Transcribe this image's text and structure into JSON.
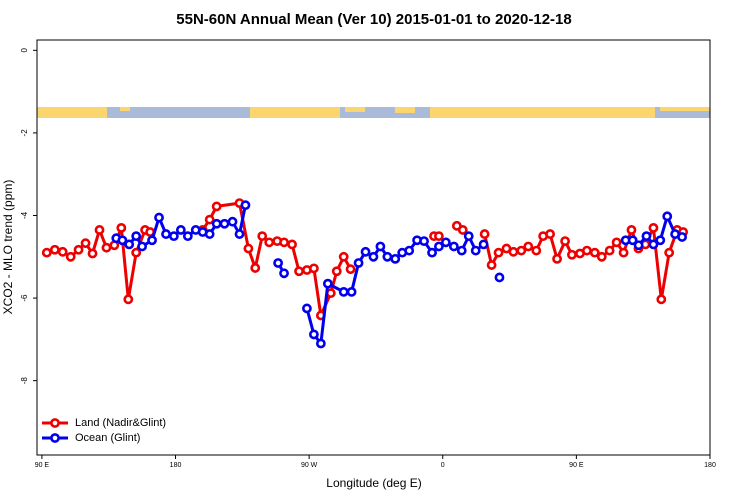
{
  "chart_data": {
    "type": "line",
    "title": "55N-60N Annual Mean (Ver 10)   2015-01-01 to 2020-12-18",
    "x_label": "Longitude (deg E)",
    "y_label": "XCO2 - MLO trend (ppm)",
    "xlim": [
      86.7,
      540
    ],
    "xticks": [
      {
        "value": 90,
        "label": "90 E"
      },
      {
        "value": 180,
        "label": "180"
      },
      {
        "value": 270,
        "label": "90 W"
      },
      {
        "value": 360,
        "label": "0"
      },
      {
        "value": 450,
        "label": "90 E"
      },
      {
        "value": 540,
        "label": "180"
      }
    ],
    "ylim": [
      -9.8,
      0.25
    ],
    "yticks": [
      0,
      -2,
      -4,
      -6,
      -8
    ],
    "legend": "bottom-left",
    "series": [
      {
        "name": "Land (Nadir&Glint)",
        "color": "#ee0000",
        "x": [
          93.3,
          98.7,
          104.0,
          109.4,
          114.7,
          119.4,
          124.1,
          128.8,
          133.5,
          138.8,
          143.5,
          148.2,
          153.5,
          159.5,
          162.9,
          null,
          198.3,
          203.0,
          207.7,
          223.1,
          229.1,
          233.7,
          238.4,
          243.1,
          248.5,
          253.1,
          258.5,
          263.2,
          268.5,
          273.2,
          277.9,
          284.6,
          288.6,
          293.3,
          297.9,
          null,
          354.1,
          357.4,
          null,
          369.5,
          373.5,
          null,
          388.2,
          392.9,
          397.6,
          402.9,
          407.6,
          412.9,
          417.6,
          423.0,
          427.6,
          432.3,
          437.0,
          442.4,
          447.0,
          452.4,
          457.1,
          462.4,
          467.1,
          472.4,
          477.1,
          481.8,
          487.1,
          491.8,
          496.5,
          501.9,
          507.2,
          512.5,
          517.9,
          521.9
        ],
        "values": [
          -4.9,
          -4.83,
          -4.88,
          -5.0,
          -4.83,
          -4.67,
          -4.92,
          -4.35,
          -4.78,
          -4.72,
          -4.3,
          -6.03,
          -4.9,
          -4.35,
          -4.4,
          null,
          -4.35,
          -4.1,
          -3.78,
          -3.7,
          -4.8,
          -5.27,
          -4.5,
          -4.65,
          -4.62,
          -4.65,
          -4.7,
          -5.35,
          -5.32,
          -5.28,
          -6.42,
          -5.88,
          -5.35,
          -5.0,
          -5.3,
          null,
          -4.5,
          -4.5,
          null,
          -4.25,
          -4.35,
          null,
          -4.45,
          -5.2,
          -4.9,
          -4.8,
          -4.88,
          -4.85,
          -4.75,
          -4.85,
          -4.5,
          -4.45,
          -5.05,
          -4.62,
          -4.95,
          -4.92,
          -4.85,
          -4.9,
          -5.0,
          -4.85,
          -4.65,
          -4.9,
          -4.35,
          -4.8,
          -4.7,
          -4.3,
          -6.03,
          -4.9,
          -4.35,
          -4.4
        ]
      },
      {
        "name": "Ocean (Glint)",
        "color": "#0000ee",
        "x": [
          140.1,
          144.2,
          148.8,
          153.5,
          157.5,
          164.2,
          168.9,
          173.6,
          178.9,
          183.6,
          188.3,
          193.6,
          198.3,
          203.0,
          207.7,
          213.0,
          218.4,
          223.1,
          227.1,
          null,
          249.1,
          253.1,
          null,
          268.5,
          273.2,
          277.9,
          282.6,
          293.3,
          298.6,
          303.3,
          308.0,
          313.3,
          318.0,
          322.7,
          328.0,
          332.7,
          337.4,
          342.7,
          347.4,
          352.8,
          357.4,
          362.1,
          367.5,
          372.8,
          377.5,
          382.2,
          387.5,
          null,
          398.2,
          null,
          483.2,
          487.9,
          491.9,
          497.2,
          501.9,
          506.5,
          511.2,
          516.5,
          521.2
        ],
        "values": [
          -4.55,
          -4.6,
          -4.7,
          -4.5,
          -4.75,
          -4.6,
          -4.05,
          -4.45,
          -4.5,
          -4.35,
          -4.5,
          -4.35,
          -4.4,
          -4.45,
          -4.2,
          -4.2,
          -4.15,
          -4.45,
          -3.75,
          null,
          -5.15,
          -5.4,
          null,
          -6.25,
          -6.88,
          -7.1,
          -5.65,
          -5.85,
          -5.85,
          -5.15,
          -4.88,
          -5.0,
          -4.75,
          -5.0,
          -5.05,
          -4.9,
          -4.85,
          -4.6,
          -4.62,
          -4.9,
          -4.75,
          -4.65,
          -4.75,
          -4.85,
          -4.5,
          -4.85,
          -4.7,
          null,
          -5.5,
          null,
          -4.6,
          -4.6,
          -4.72,
          -4.5,
          -4.7,
          -4.6,
          -4.02,
          -4.45,
          -4.52
        ]
      }
    ]
  }
}
